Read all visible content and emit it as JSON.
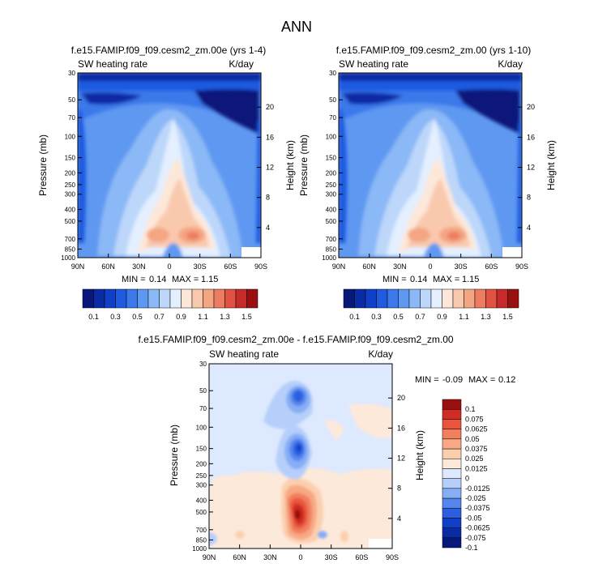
{
  "page": {
    "title": "ANN"
  },
  "colors": {
    "seq_palette": [
      "#07187a",
      "#0b2ba4",
      "#1040c8",
      "#1f5ae0",
      "#3b78ea",
      "#5f98f1",
      "#8bb8f6",
      "#bcd7fa",
      "#e4efff",
      "#fde7d8",
      "#f9c9ae",
      "#f4a582",
      "#ec7d60",
      "#e05242",
      "#c62a2b",
      "#9a1010"
    ],
    "diff_palette": [
      "#07187a",
      "#0b2ba4",
      "#1040c8",
      "#2c5fe0",
      "#5586ed",
      "#86aef5",
      "#b6cffa",
      "#dde9fe",
      "#fde9da",
      "#fbcfae",
      "#f8a984",
      "#f27f5e",
      "#e8553c",
      "#d02c23",
      "#9a1010"
    ]
  },
  "chart_data": [
    {
      "type": "heatmap",
      "title": "f.e15.FAMIP.f09_f09.cesm2_zm.00e (yrs 1-4)",
      "left_label": "SW heating rate",
      "right_label": "K/day",
      "xlabel": "",
      "ylabel": "Pressure (mb)",
      "ylabel_right": "Height (km)",
      "xticks": [
        "90N",
        "60N",
        "30N",
        "0",
        "30S",
        "60S",
        "90S"
      ],
      "yticks": [
        "30",
        "50",
        "70",
        "100",
        "150",
        "200",
        "250",
        "300",
        "400",
        "500",
        "700",
        "850",
        "1000"
      ],
      "height_ticks": [
        "20",
        "16",
        "12",
        "8",
        "4"
      ],
      "stats": {
        "min_label": "MIN =",
        "min": "0.14",
        "max_label": "MAX =",
        "max": "1.15"
      },
      "colorbar_labels": [
        "0.1",
        "0.3",
        "0.5",
        "0.7",
        "0.9",
        "1.1",
        "1.3",
        "1.5"
      ]
    },
    {
      "type": "heatmap",
      "title": "f.e15.FAMIP.f09_f09.cesm2_zm.00 (yrs 1-10)",
      "left_label": "SW heating rate",
      "right_label": "K/day",
      "xlabel": "",
      "ylabel": "Pressure (mb)",
      "ylabel_right": "Height (km)",
      "xticks": [
        "90N",
        "60N",
        "30N",
        "0",
        "30S",
        "60S",
        "90S"
      ],
      "yticks": [
        "30",
        "50",
        "70",
        "100",
        "150",
        "200",
        "250",
        "300",
        "400",
        "500",
        "700",
        "850",
        "1000"
      ],
      "height_ticks": [
        "20",
        "16",
        "12",
        "8",
        "4"
      ],
      "stats": {
        "min_label": "MIN =",
        "min": "0.14",
        "max_label": "MAX =",
        "max": "1.15"
      },
      "colorbar_labels": [
        "0.1",
        "0.3",
        "0.5",
        "0.7",
        "0.9",
        "1.1",
        "1.3",
        "1.5"
      ]
    },
    {
      "type": "heatmap",
      "title": "f.e15.FAMIP.f09_f09.cesm2_zm.00e - f.e15.FAMIP.f09_f09.cesm2_zm.00",
      "left_label": "SW heating rate",
      "right_label": "K/day",
      "xlabel": "",
      "ylabel": "Pressure (mb)",
      "ylabel_right": "Height (km)",
      "xticks": [
        "90N",
        "60N",
        "30N",
        "0",
        "30S",
        "60S",
        "90S"
      ],
      "yticks": [
        "30",
        "50",
        "70",
        "100",
        "150",
        "200",
        "250",
        "300",
        "400",
        "500",
        "700",
        "850",
        "1000"
      ],
      "height_ticks": [
        "20",
        "16",
        "12",
        "8",
        "4"
      ],
      "stats": {
        "min_label": "MIN =",
        "min": "-0.09",
        "max_label": "MAX =",
        "max": "0.12"
      },
      "colorbar_labels": [
        "0.1",
        "0.075",
        "0.0625",
        "0.05",
        "0.0375",
        "0.025",
        "0.0125",
        "0",
        "-0.0125",
        "-0.025",
        "-0.0375",
        "-0.05",
        "-0.0625",
        "-0.075",
        "-0.1"
      ]
    }
  ]
}
